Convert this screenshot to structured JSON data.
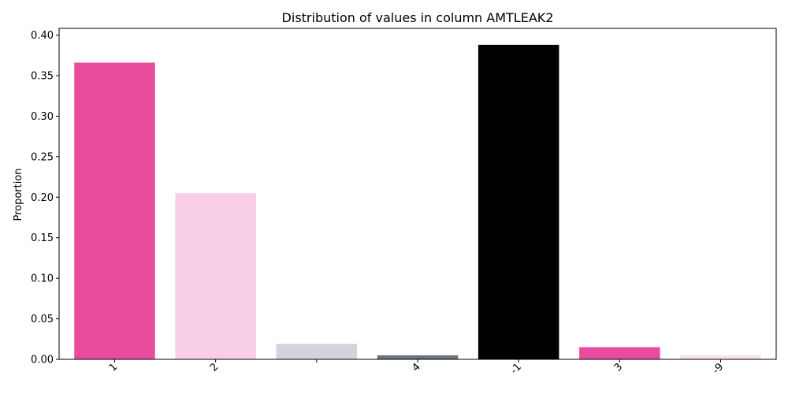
{
  "chart_data": {
    "type": "bar",
    "title": "Distribution of values in column AMTLEAK2",
    "xlabel": "",
    "ylabel": "Proportion",
    "categories": [
      "1",
      "2",
      "",
      "4",
      "-1",
      "3",
      "-9"
    ],
    "values": [
      0.366,
      0.205,
      0.019,
      0.005,
      0.388,
      0.015,
      0.005
    ],
    "colors": [
      "#e84c9c",
      "#f9cfe7",
      "#d2d4db",
      "#6b7280",
      "#000000",
      "#e84c9c",
      "#fbe1ef"
    ],
    "ylim": [
      0,
      0.4083
    ],
    "yticks": [
      "0.00",
      "0.05",
      "0.10",
      "0.15",
      "0.20",
      "0.25",
      "0.30",
      "0.35",
      "0.40"
    ],
    "grid": false,
    "legend": "none"
  }
}
